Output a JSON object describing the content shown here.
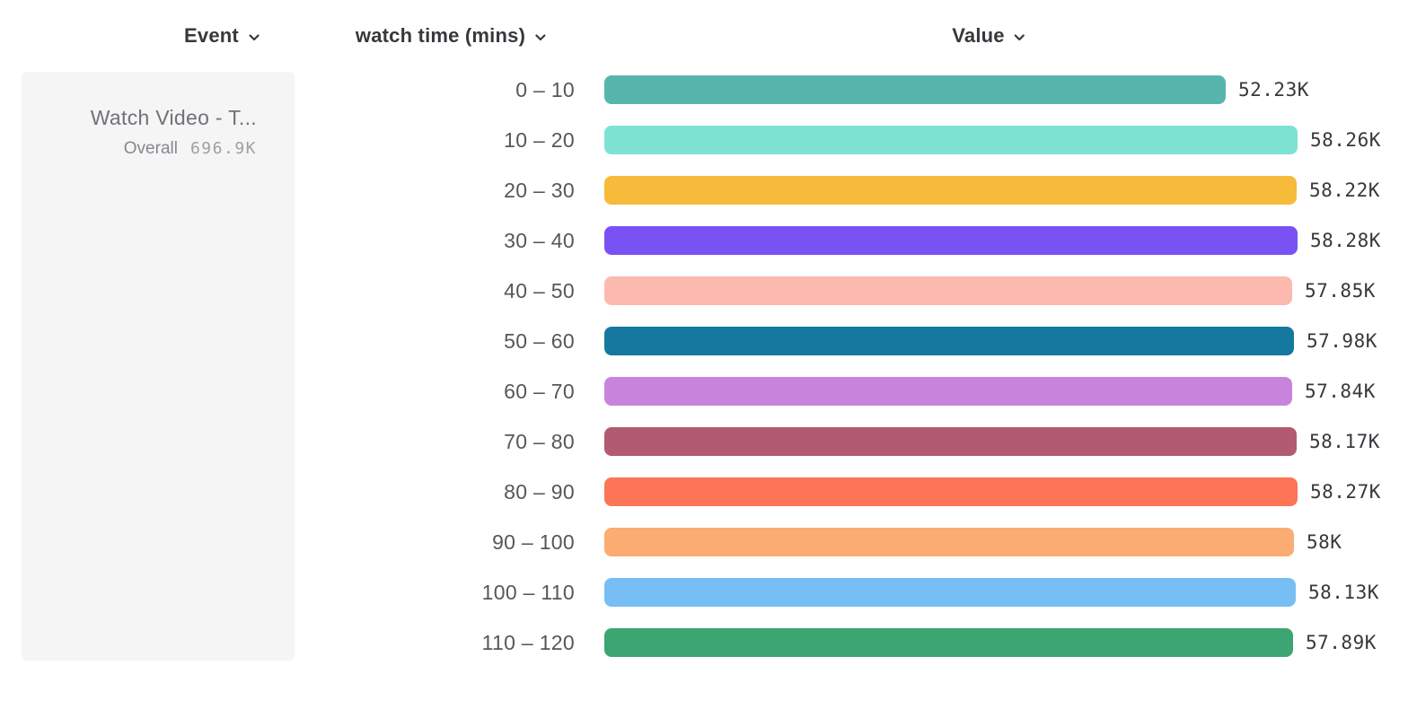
{
  "header": {
    "columns": [
      {
        "id": "event",
        "label": "Event"
      },
      {
        "id": "breakdown",
        "label": "watch time (mins)"
      },
      {
        "id": "value",
        "label": "Value"
      }
    ]
  },
  "event_card": {
    "title": "Watch Video - T...",
    "overall_label": "Overall",
    "overall_value": "696.9K"
  },
  "chart_data": {
    "type": "bar",
    "orientation": "horizontal",
    "title": "",
    "xlabel": "Value",
    "ylabel": "watch time (mins)",
    "xlim": [
      0,
      58280
    ],
    "grid": false,
    "legend_position": "none",
    "categories": [
      "0 – 10",
      "10 – 20",
      "20 – 30",
      "30 – 40",
      "40 – 50",
      "50 – 60",
      "60 – 70",
      "70 – 80",
      "80 – 90",
      "90 – 100",
      "100 – 110",
      "110 – 120"
    ],
    "values": [
      52230,
      58260,
      58220,
      58280,
      57850,
      57980,
      57840,
      58170,
      58270,
      58000,
      58130,
      57890
    ],
    "value_labels": [
      "52.23K",
      "58.26K",
      "58.22K",
      "58.28K",
      "57.85K",
      "57.98K",
      "57.84K",
      "58.17K",
      "58.27K",
      "58K",
      "58.13K",
      "57.89K"
    ],
    "bar_colors": [
      "#56b6ad",
      "#7de2d1",
      "#f6bb3b",
      "#7a52f4",
      "#fcb9ae",
      "#15789e",
      "#c884dc",
      "#b25a71",
      "#fc7557",
      "#faac72",
      "#77bef4",
      "#3ca572"
    ]
  },
  "colors": {
    "header_text": "#36383c",
    "category_text": "#55575b",
    "value_text": "#36383c",
    "card_background": "#f5f5f6",
    "card_title_text": "#6f7276",
    "overall_label_text": "#85888d",
    "overall_value_text": "#9ca0a5"
  },
  "icons": {
    "chevron_down": "chevron-down-icon"
  }
}
